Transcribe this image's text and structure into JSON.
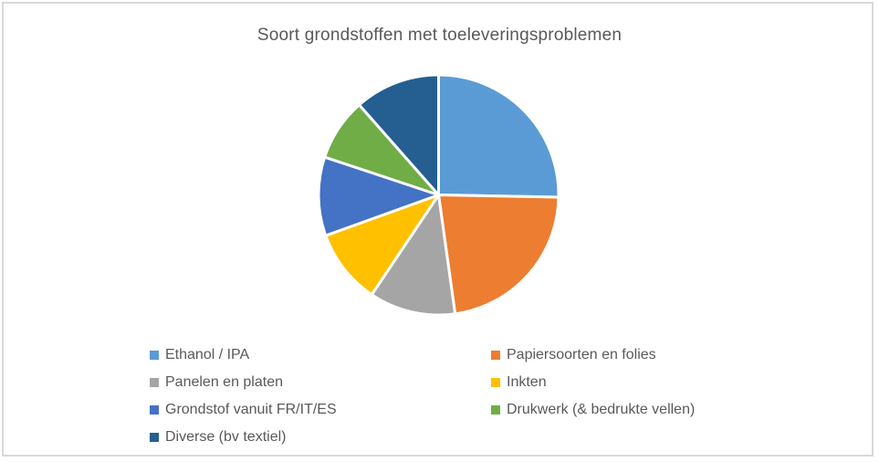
{
  "frame": {
    "background_color": "#FFFFFF",
    "border_color": "#D9D9D9"
  },
  "chart_data": {
    "type": "pie",
    "title": "Soort grondstoffen met toeleveringsproblemen",
    "title_color": "#595959",
    "text_color": "#595959",
    "categories": [
      "Ethanol / IPA",
      "Papiersoorten en folies",
      "Panelen en platen",
      "Inkten",
      "Grondstof vanuit FR/IT/ES",
      "Drukwerk (& bedrukte vellen)",
      "Diverse (bv textiel)"
    ],
    "values": [
      25.3,
      22.5,
      11.6,
      10.1,
      10.6,
      8.4,
      11.5
    ],
    "unit": "percent (estimated from slice angles; no data labels shown)",
    "colors": [
      "#5B9BD5",
      "#ED7D31",
      "#A5A5A5",
      "#FFC000",
      "#4472C4",
      "#70AD47",
      "#255E91"
    ],
    "start_angle_deg": 0,
    "direction": "clockwise",
    "slice_border_color": "#FFFFFF",
    "legend_position": "bottom",
    "legend_columns": 2,
    "grid": "off",
    "data_labels": "off"
  }
}
